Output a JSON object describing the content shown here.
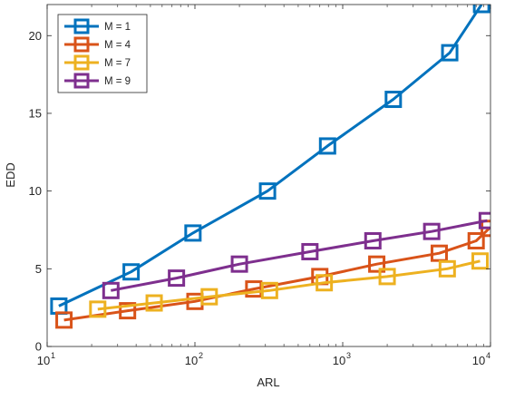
{
  "chart_data": {
    "type": "line",
    "title": "",
    "xlabel": "ARL",
    "ylabel": "EDD",
    "xscale": "log",
    "xlim": [
      10,
      10000
    ],
    "ylim": [
      0,
      22
    ],
    "xticks": [
      10,
      100,
      1000,
      10000
    ],
    "xtick_labels": [
      {
        "base": "10",
        "exp": "1"
      },
      {
        "base": "10",
        "exp": "2"
      },
      {
        "base": "10",
        "exp": "3"
      },
      {
        "base": "10",
        "exp": "4"
      }
    ],
    "yticks": [
      0,
      5,
      10,
      15,
      20
    ],
    "grid": false,
    "legend_position": "top-left",
    "series": [
      {
        "name": "M = 1",
        "color": "#0072BD",
        "marker": "square",
        "x": [
          12,
          37,
          97,
          310,
          790,
          2200,
          5300,
          8700
        ],
        "y": [
          2.6,
          4.8,
          7.3,
          10.0,
          12.9,
          15.9,
          18.9,
          22.0
        ]
      },
      {
        "name": "M = 4",
        "color": "#D95319",
        "marker": "square",
        "x": [
          13,
          35,
          100,
          250,
          700,
          1700,
          4500,
          8000,
          9800
        ],
        "y": [
          1.7,
          2.3,
          2.9,
          3.7,
          4.5,
          5.3,
          6.0,
          6.8,
          7.6
        ]
      },
      {
        "name": "M = 7",
        "color": "#EDB120",
        "marker": "square",
        "x": [
          22,
          53,
          125,
          320,
          750,
          2000,
          5100,
          8500
        ],
        "y": [
          2.4,
          2.8,
          3.2,
          3.6,
          4.1,
          4.5,
          5.0,
          5.5
        ]
      },
      {
        "name": "M = 9",
        "color": "#7E2F8E",
        "marker": "square",
        "x": [
          27,
          75,
          200,
          600,
          1600,
          4000,
          9500
        ],
        "y": [
          3.6,
          4.4,
          5.3,
          6.1,
          6.8,
          7.4,
          8.1
        ]
      }
    ]
  }
}
